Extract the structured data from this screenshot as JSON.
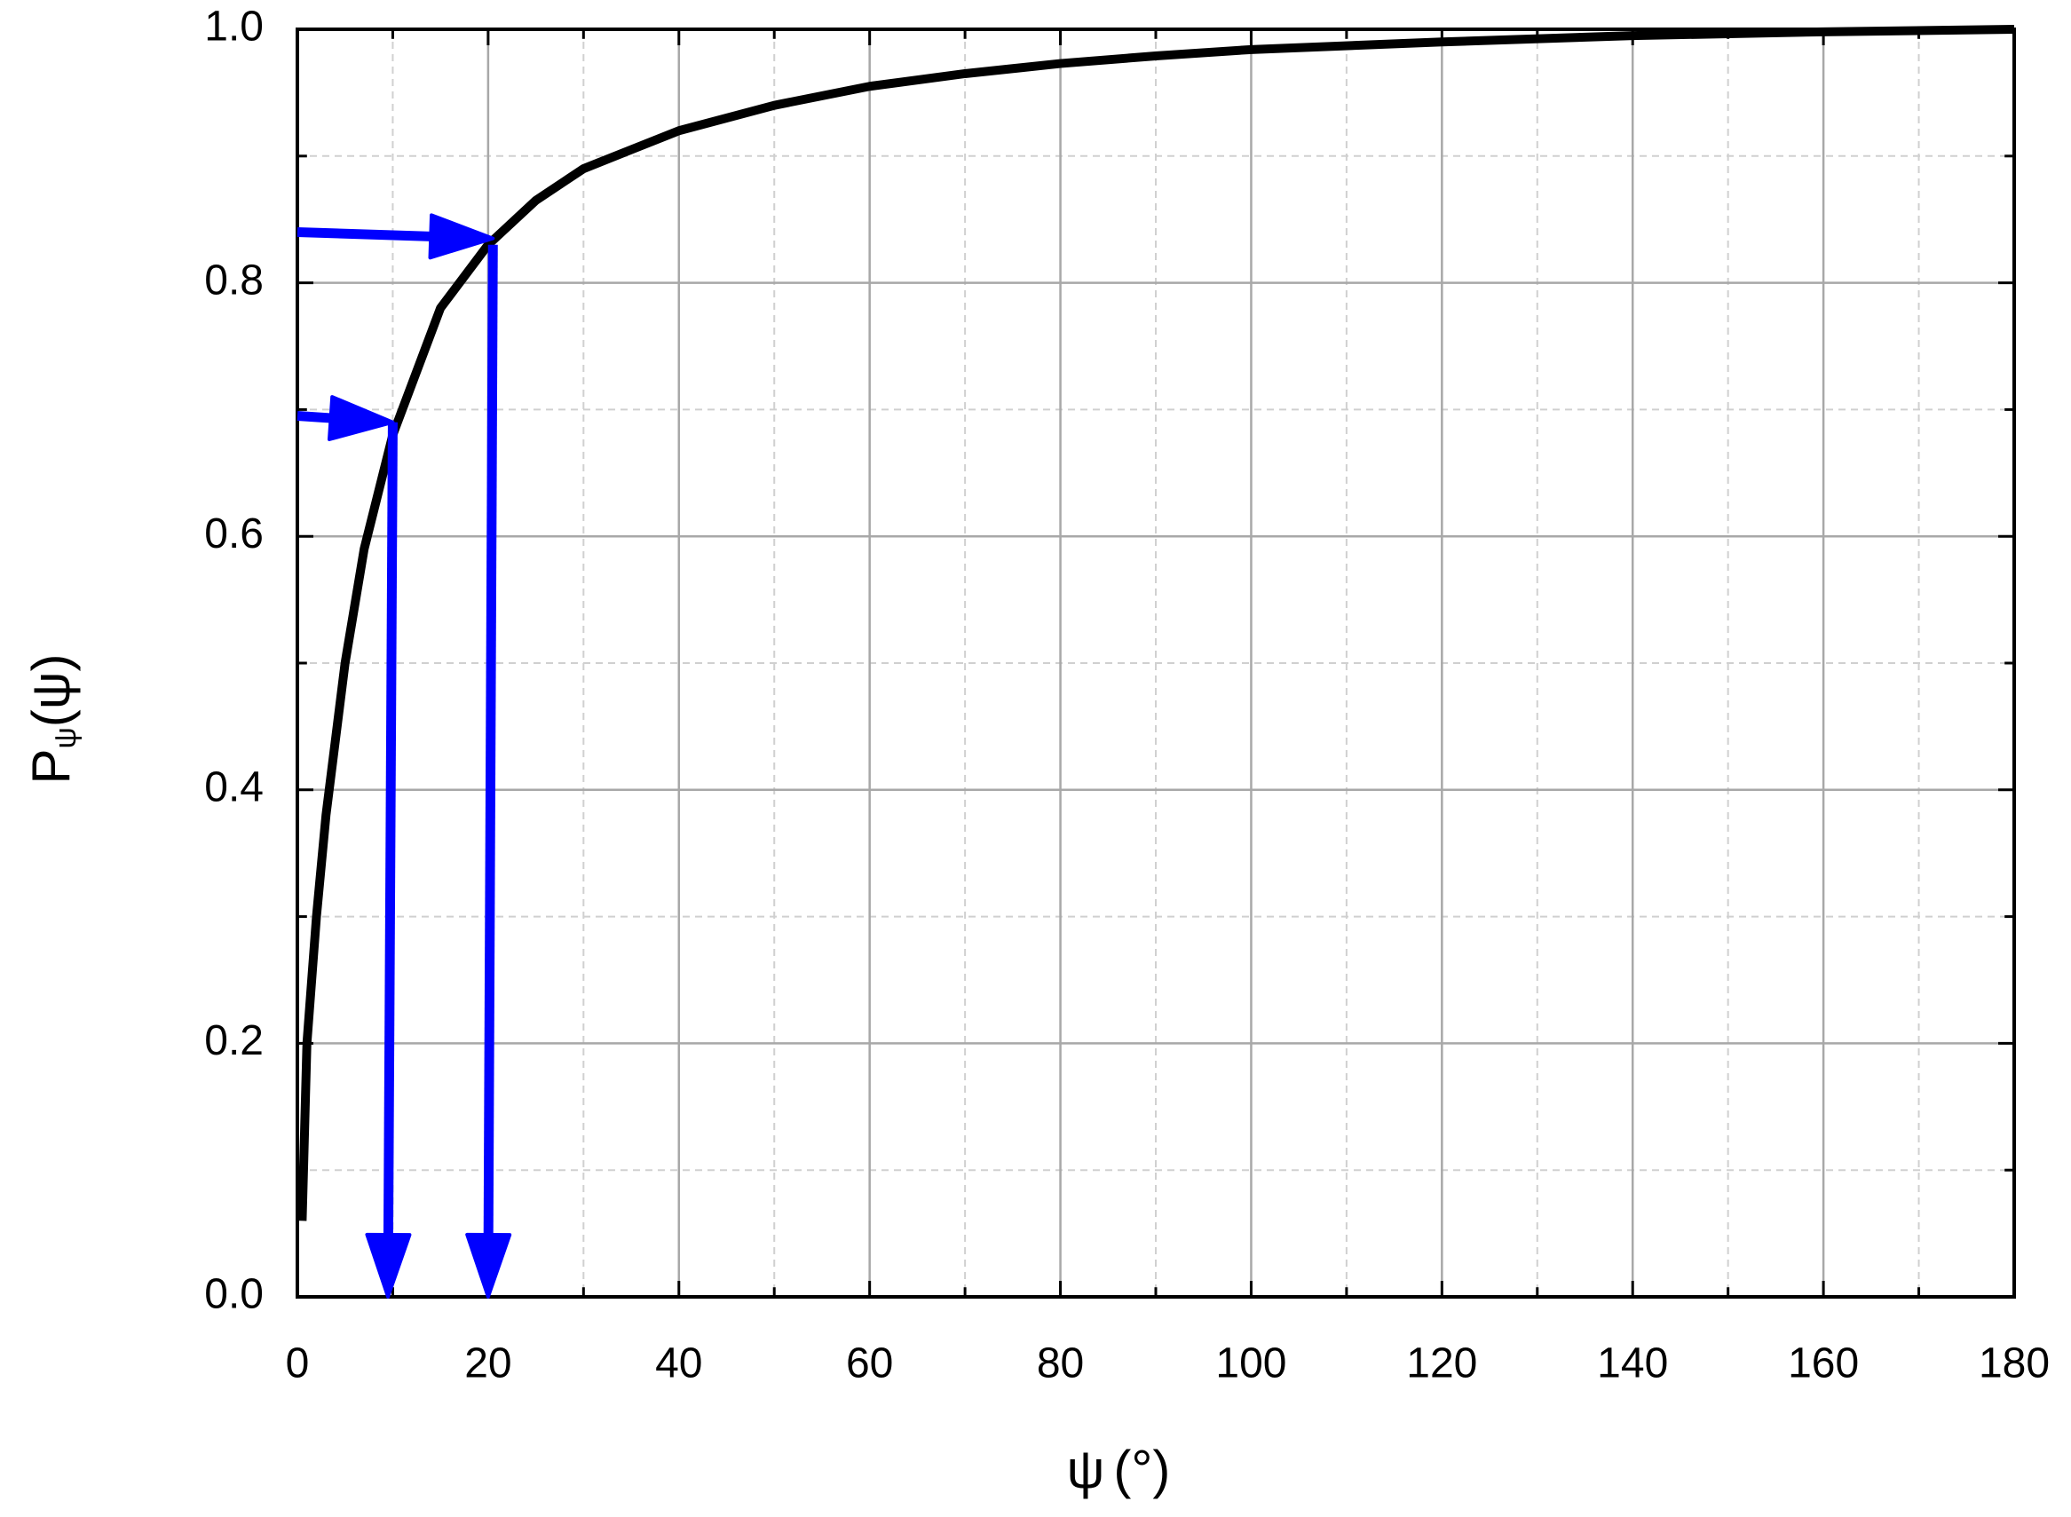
{
  "chart_data": {
    "type": "line",
    "xlabel": {
      "main": "ψ",
      "rest": "(°)"
    },
    "ylabel": {
      "main": "P",
      "sub": "ψ",
      "rest": "(ψ)"
    },
    "series": [
      {
        "color": "#000000",
        "x": [
          0.5,
          1,
          2,
          3,
          5,
          7,
          10,
          15,
          20,
          25,
          30,
          35,
          40,
          50,
          60,
          70,
          80,
          90,
          100,
          120,
          140,
          160,
          180
        ],
        "values": [
          0.06,
          0.2,
          0.3,
          0.38,
          0.5,
          0.59,
          0.68,
          0.78,
          0.83,
          0.865,
          0.89,
          0.905,
          0.92,
          0.94,
          0.955,
          0.965,
          0.973,
          0.979,
          0.984,
          0.99,
          0.995,
          0.998,
          1.0
        ]
      }
    ],
    "arrows": [
      {
        "color": "#0000ff",
        "x1": 0,
        "y1": 0.695,
        "x2": 10,
        "y2": 0.69
      },
      {
        "color": "#0000ff",
        "x1": 10,
        "y1": 0.69,
        "x2": 9.5,
        "y2": 0
      },
      {
        "color": "#0000ff",
        "x1": 0,
        "y1": 0.84,
        "x2": 20.5,
        "y2": 0.835
      },
      {
        "color": "#0000ff",
        "x1": 20.5,
        "y1": 0.83,
        "x2": 20,
        "y2": 0
      }
    ],
    "xlim": [
      0,
      180
    ],
    "xticks": [
      0,
      20,
      40,
      60,
      80,
      100,
      120,
      140,
      160,
      180
    ],
    "xminor": [
      10,
      30,
      50,
      70,
      90,
      110,
      130,
      150,
      170
    ],
    "ylim": [
      0,
      1
    ],
    "yticks": [
      {
        "value": 0,
        "label": "0.0"
      },
      0.2,
      0.4,
      0.6,
      0.8,
      {
        "value": 1,
        "label": "1.0"
      }
    ],
    "yminor": [
      0.1,
      0.3,
      0.5,
      0.7,
      0.9
    ],
    "grid": true
  }
}
